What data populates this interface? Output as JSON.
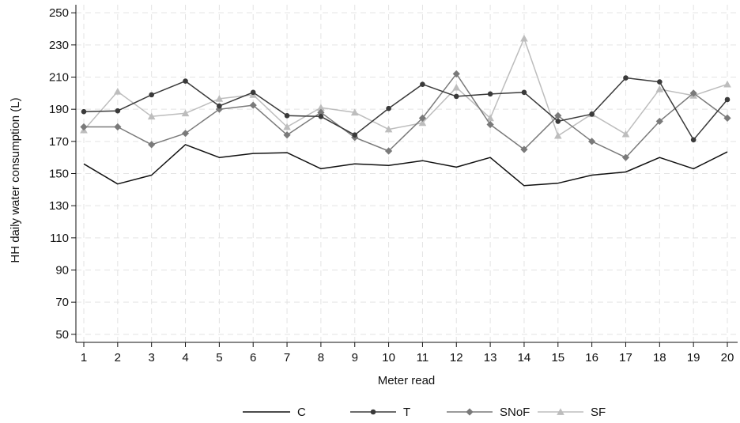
{
  "chart_data": {
    "type": "line",
    "xlabel": "Meter read",
    "ylabel": "HH daily water consumption (L)",
    "x": [
      1,
      2,
      3,
      4,
      5,
      6,
      7,
      8,
      9,
      10,
      11,
      12,
      13,
      14,
      15,
      16,
      17,
      18,
      19,
      20
    ],
    "xlim": [
      1,
      20
    ],
    "ylim": [
      45,
      255
    ],
    "yticks": [
      50,
      70,
      90,
      110,
      130,
      150,
      170,
      190,
      210,
      230,
      250
    ],
    "grid": true,
    "legend_position": "bottom",
    "series": [
      {
        "name": "C",
        "color": "#111111",
        "marker": "none",
        "values": [
          156,
          143.5,
          149,
          168,
          160,
          162.5,
          163,
          153,
          156,
          155,
          158,
          154,
          160,
          142.5,
          144,
          149,
          151,
          160,
          153,
          163.5
        ]
      },
      {
        "name": "T",
        "color": "#3a3a3a",
        "marker": "circle",
        "values": [
          188.5,
          189,
          199,
          207.5,
          192,
          200.5,
          186,
          185.5,
          174,
          190.5,
          205.5,
          198,
          199.5,
          200.5,
          182.5,
          187,
          209.5,
          207,
          171,
          196
        ]
      },
      {
        "name": "SNoF",
        "color": "#7a7a7a",
        "marker": "diamond",
        "values": [
          179,
          179,
          168,
          175,
          190,
          192.5,
          174,
          188,
          172.5,
          164,
          184.5,
          212,
          180.5,
          165,
          186,
          170,
          160,
          182.5,
          200,
          184.5
        ]
      },
      {
        "name": "SF",
        "color": "#bdbdbd",
        "marker": "triangle",
        "values": [
          177,
          201,
          185.5,
          187.5,
          196.5,
          199,
          179,
          191,
          188,
          177.5,
          181.5,
          203.5,
          184.5,
          234,
          173.5,
          187,
          174.5,
          202.5,
          198.5,
          205.5
        ]
      }
    ]
  }
}
